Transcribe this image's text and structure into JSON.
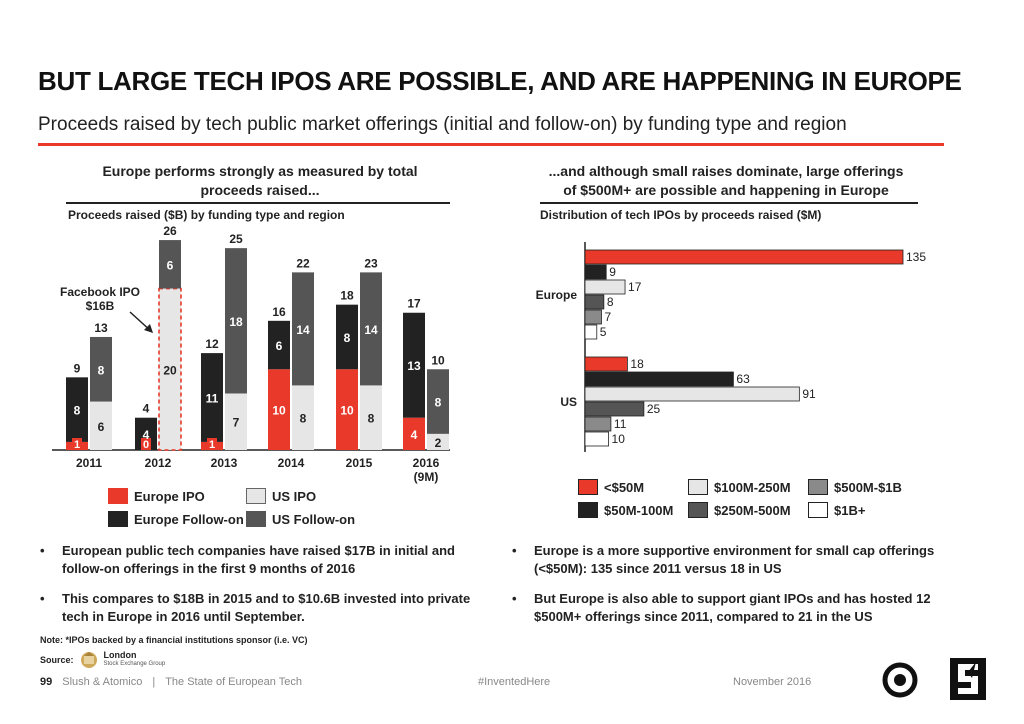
{
  "header": {
    "title": "BUT LARGE TECH IPOS ARE POSSIBLE, AND ARE HAPPENING IN EUROPE",
    "subtitle": "Proceeds raised by tech public market offerings (initial and follow-on) by funding type and region"
  },
  "left_panel": {
    "heading_line1": "Europe performs strongly as measured by total",
    "heading_line2": "proceeds raised...",
    "subheading": "Proceeds raised ($B) by funding type and region",
    "annotation_line1": "Facebook IPO",
    "annotation_line2": "$16B"
  },
  "right_panel": {
    "heading_line1": "...and although small raises dominate, large offerings",
    "heading_line2": "of $500M+ are possible and happening in Europe",
    "subheading": "Distribution of tech IPOs by proceeds raised ($M)"
  },
  "colors": {
    "europe_ipo": "#e8392a",
    "europe_followon": "#222222",
    "us_ipo": "#e6e6e6",
    "us_followon": "#555555",
    "lt50": "#e8392a",
    "m50_100": "#222222",
    "m100_250": "#e6e6e6",
    "m250_500": "#555555",
    "m500_1b": "#8a8a8a",
    "b1plus": "#ffffff",
    "accent": "#e8392a"
  },
  "chart_data": [
    {
      "type": "bar",
      "stacked": true,
      "grouped": true,
      "categories": [
        "2011",
        "2012",
        "2013",
        "2014",
        "2015",
        "2016 (9M)"
      ],
      "category_labels": [
        [
          "2011"
        ],
        [
          "2012"
        ],
        [
          "2013"
        ],
        [
          "2014"
        ],
        [
          "2015"
        ],
        [
          "2016",
          "(9M)"
        ]
      ],
      "groups": [
        {
          "name": "Europe",
          "series": [
            {
              "name": "Europe IPO",
              "values": [
                1,
                0,
                1,
                10,
                10,
                4
              ]
            },
            {
              "name": "Europe Follow-on",
              "values": [
                8,
                4,
                11,
                6,
                8,
                13
              ]
            }
          ],
          "totals": [
            9,
            4,
            12,
            16,
            18,
            17
          ]
        },
        {
          "name": "US",
          "series": [
            {
              "name": "US IPO",
              "values": [
                6,
                20,
                7,
                8,
                8,
                2
              ]
            },
            {
              "name": "US Follow-on",
              "values": [
                8,
                6,
                18,
                14,
                14,
                8
              ]
            }
          ],
          "totals": [
            13,
            26,
            25,
            22,
            23,
            10
          ]
        }
      ],
      "legend": [
        "Europe IPO",
        "US IPO",
        "Europe Follow-on",
        "US Follow-on"
      ],
      "ylim": [
        0,
        27
      ]
    },
    {
      "type": "bar",
      "orientation": "horizontal",
      "groups": [
        "Europe",
        "US"
      ],
      "series": [
        {
          "name": "<$50M",
          "values": [
            135,
            18
          ]
        },
        {
          "name": "$50M-100M",
          "values": [
            9,
            63
          ]
        },
        {
          "name": "$100M-250M",
          "values": [
            17,
            91
          ]
        },
        {
          "name": "$250M-500M",
          "values": [
            8,
            25
          ]
        },
        {
          "name": "$500M-$1B",
          "values": [
            7,
            11
          ]
        },
        {
          "name": "$1B+",
          "values": [
            5,
            10
          ]
        }
      ],
      "legend_order": [
        "<$50M",
        "$100M-250M",
        "$500M-$1B",
        "$50M-100M",
        "$250M-500M",
        "$1B+"
      ],
      "xlim": [
        0,
        135
      ]
    }
  ],
  "bullets": {
    "left": [
      "European public tech companies have raised $17B in initial and follow-on offerings in the first 9 months of 2016",
      "This compares to $18B in 2015 and to $10.6B invested into private tech in Europe in 2016 until September."
    ],
    "right": [
      "Europe is a more supportive environment for small cap offerings (<$50M): 135 since 2011 versus 18 in US",
      "But Europe is also able to support giant IPOs and has hosted 12 $500M+ offerings since 2011, compared to 21 in the US"
    ]
  },
  "note": "Note: *IPOs backed by a financial institutions sponsor (i.e. VC)",
  "source": {
    "label": "Source:",
    "logo_name": "London",
    "logo_sub": "Stock Exchange Group"
  },
  "footer": {
    "page_number": "99",
    "publisher": "Slush & Atomico",
    "separator": "|",
    "report": "The State of European Tech",
    "hashtag": "#InventedHere",
    "date": "November 2016",
    "logos": [
      "slush-logo-icon",
      "atomico-logo-icon"
    ]
  }
}
